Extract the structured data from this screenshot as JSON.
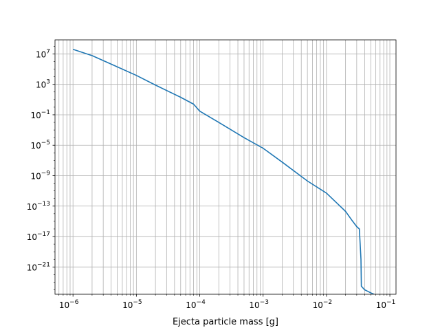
{
  "chart_data": {
    "type": "line",
    "title": "",
    "xlabel": "Ejecta particle mass [g]",
    "ylabel": "",
    "xscale": "log",
    "yscale": "log",
    "grid": true,
    "grid_which": "both-x, major-y",
    "xlim": [
      5.2e-07,
      0.125
    ],
    "ylim": [
      2.6e-25,
      700000000.0
    ],
    "x_ticks": [
      {
        "value": 1e-06,
        "base": "10",
        "exp": "−6"
      },
      {
        "value": 1e-05,
        "base": "10",
        "exp": "−5"
      },
      {
        "value": 0.0001,
        "base": "10",
        "exp": "−4"
      },
      {
        "value": 0.001,
        "base": "10",
        "exp": "−3"
      },
      {
        "value": 0.01,
        "base": "10",
        "exp": "−2"
      },
      {
        "value": 0.1,
        "base": "10",
        "exp": "−1"
      }
    ],
    "y_ticks": [
      {
        "value": 10000000.0,
        "base": "10",
        "exp": "7"
      },
      {
        "value": 1000.0,
        "base": "10",
        "exp": "3"
      },
      {
        "value": 0.1,
        "base": "10",
        "exp": "−1"
      },
      {
        "value": 1e-05,
        "base": "10",
        "exp": "−5"
      },
      {
        "value": 1e-09,
        "base": "10",
        "exp": "−9"
      },
      {
        "value": 1e-13,
        "base": "10",
        "exp": "−13"
      },
      {
        "value": 1e-17,
        "base": "10",
        "exp": "−17"
      },
      {
        "value": 1e-21,
        "base": "10",
        "exp": "−21"
      }
    ],
    "series": [
      {
        "color": "#1f77b4",
        "x": [
          1e-06,
          2e-06,
          5e-06,
          1e-05,
          2e-05,
          5e-05,
          8e-05,
          0.0001,
          0.0002,
          0.0005,
          0.001,
          0.002,
          0.005,
          0.01,
          0.015,
          0.02,
          0.025,
          0.03,
          0.033,
          0.034,
          0.035,
          0.0355,
          0.04,
          0.05,
          0.06,
          0.07,
          0.072,
          0.075
        ],
        "y": [
          40000000.0,
          6000000.0,
          200000.0,
          15000.0,
          800.0,
          20.0,
          2.5,
          0.3,
          0.01,
          0.0001,
          4e-06,
          6e-08,
          2e-10,
          5e-12,
          2e-13,
          2e-14,
          1.5e-15,
          2e-16,
          1e-16,
          1e-18,
          1e-20,
          3e-24,
          1e-24,
          4e-25,
          2e-25,
          5e-26,
          2e-26,
          1e-26
        ]
      }
    ]
  }
}
